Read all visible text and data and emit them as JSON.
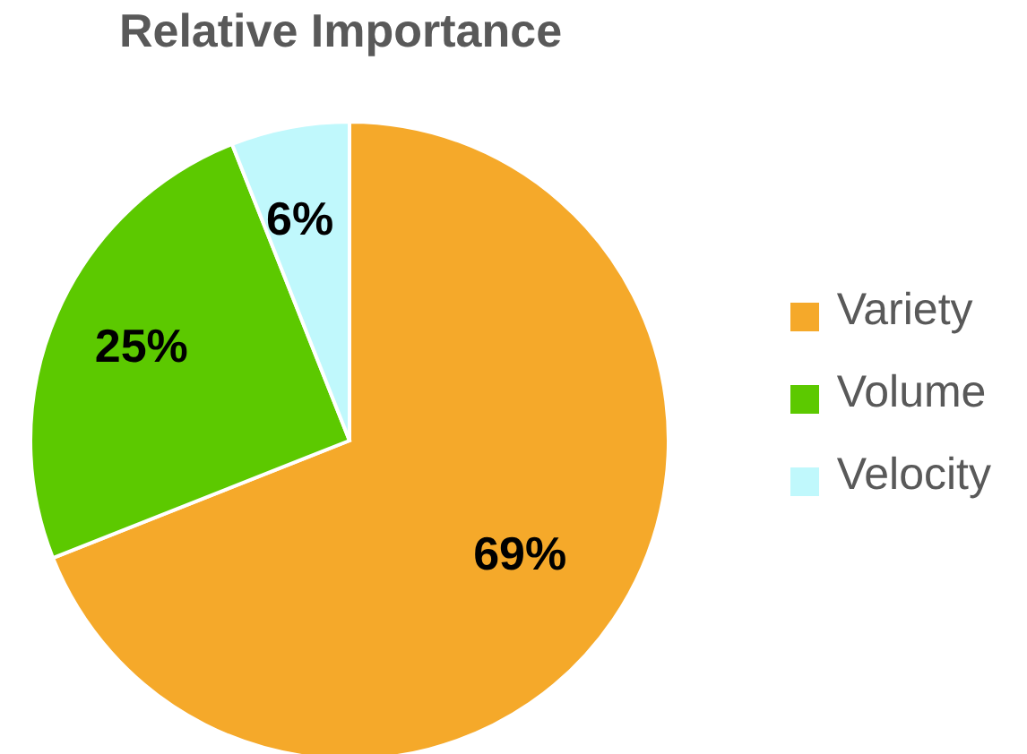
{
  "chart_data": {
    "type": "pie",
    "title": "Relative Importance",
    "categories": [
      "Variety",
      "Volume",
      "Velocity"
    ],
    "values": [
      69,
      25,
      6
    ],
    "value_labels": [
      "69%",
      "25%",
      "6%"
    ],
    "colors": [
      "#f5a92a",
      "#5cc900",
      "#c0f8fc"
    ],
    "legend": "right"
  }
}
